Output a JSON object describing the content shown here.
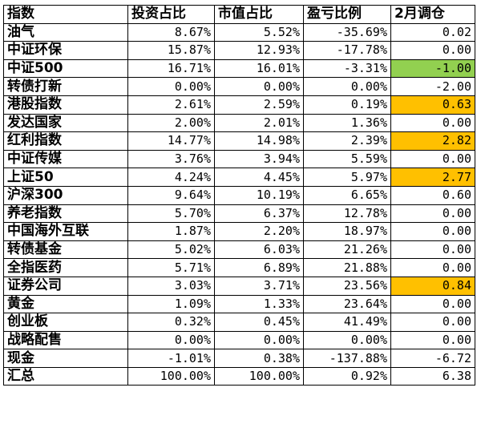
{
  "table": {
    "headers": [
      "指数",
      "投资占比",
      "市值占比",
      "盈亏比例",
      "2月调仓"
    ],
    "rows": [
      {
        "name": "油气",
        "invest": "8.67%",
        "market": "5.52%",
        "pnl": "-35.69%",
        "adjust": "0.02",
        "highlight": ""
      },
      {
        "name": "中证环保",
        "invest": "15.87%",
        "market": "12.93%",
        "pnl": "-17.78%",
        "adjust": "0.00",
        "highlight": ""
      },
      {
        "name": "中证500",
        "invest": "16.71%",
        "market": "16.01%",
        "pnl": "-3.31%",
        "adjust": "-1.00",
        "highlight": "#92d050"
      },
      {
        "name": "转债打新",
        "invest": "0.00%",
        "market": "0.00%",
        "pnl": "0.00%",
        "adjust": "-2.00",
        "highlight": ""
      },
      {
        "name": "港股指数",
        "invest": "2.61%",
        "market": "2.59%",
        "pnl": "0.19%",
        "adjust": "0.63",
        "highlight": "#ffc000"
      },
      {
        "name": "发达国家",
        "invest": "2.00%",
        "market": "2.01%",
        "pnl": "1.36%",
        "adjust": "0.00",
        "highlight": ""
      },
      {
        "name": "红利指数",
        "invest": "14.77%",
        "market": "14.98%",
        "pnl": "2.39%",
        "adjust": "2.82",
        "highlight": "#ffc000"
      },
      {
        "name": "中证传媒",
        "invest": "3.76%",
        "market": "3.94%",
        "pnl": "5.59%",
        "adjust": "0.00",
        "highlight": ""
      },
      {
        "name": "上证50",
        "invest": "4.24%",
        "market": "4.45%",
        "pnl": "5.97%",
        "adjust": "2.77",
        "highlight": "#ffc000"
      },
      {
        "name": "沪深300",
        "invest": "9.64%",
        "market": "10.19%",
        "pnl": "6.65%",
        "adjust": "0.60",
        "highlight": ""
      },
      {
        "name": "养老指数",
        "invest": "5.70%",
        "market": "6.37%",
        "pnl": "12.78%",
        "adjust": "0.00",
        "highlight": ""
      },
      {
        "name": "中国海外互联",
        "invest": "1.87%",
        "market": "2.20%",
        "pnl": "18.97%",
        "adjust": "0.00",
        "highlight": ""
      },
      {
        "name": "转债基金",
        "invest": "5.02%",
        "market": "6.03%",
        "pnl": "21.26%",
        "adjust": "0.00",
        "highlight": ""
      },
      {
        "name": "全指医药",
        "invest": "5.71%",
        "market": "6.89%",
        "pnl": "21.88%",
        "adjust": "0.00",
        "highlight": ""
      },
      {
        "name": "证券公司",
        "invest": "3.03%",
        "market": "3.71%",
        "pnl": "23.56%",
        "adjust": "0.84",
        "highlight": "#ffc000"
      },
      {
        "name": "黄金",
        "invest": "1.09%",
        "market": "1.33%",
        "pnl": "23.64%",
        "adjust": "0.00",
        "highlight": ""
      },
      {
        "name": "创业板",
        "invest": "0.32%",
        "market": "0.45%",
        "pnl": "41.49%",
        "adjust": "0.00",
        "highlight": ""
      },
      {
        "name": "战略配售",
        "invest": "0.00%",
        "market": "0.00%",
        "pnl": "0.00%",
        "adjust": "0.00",
        "highlight": ""
      },
      {
        "name": "现金",
        "invest": "-1.01%",
        "market": "0.38%",
        "pnl": "-137.88%",
        "adjust": "-6.72",
        "highlight": ""
      },
      {
        "name": "汇总",
        "invest": "100.00%",
        "market": "100.00%",
        "pnl": "0.92%",
        "adjust": "6.38",
        "highlight": ""
      }
    ]
  }
}
